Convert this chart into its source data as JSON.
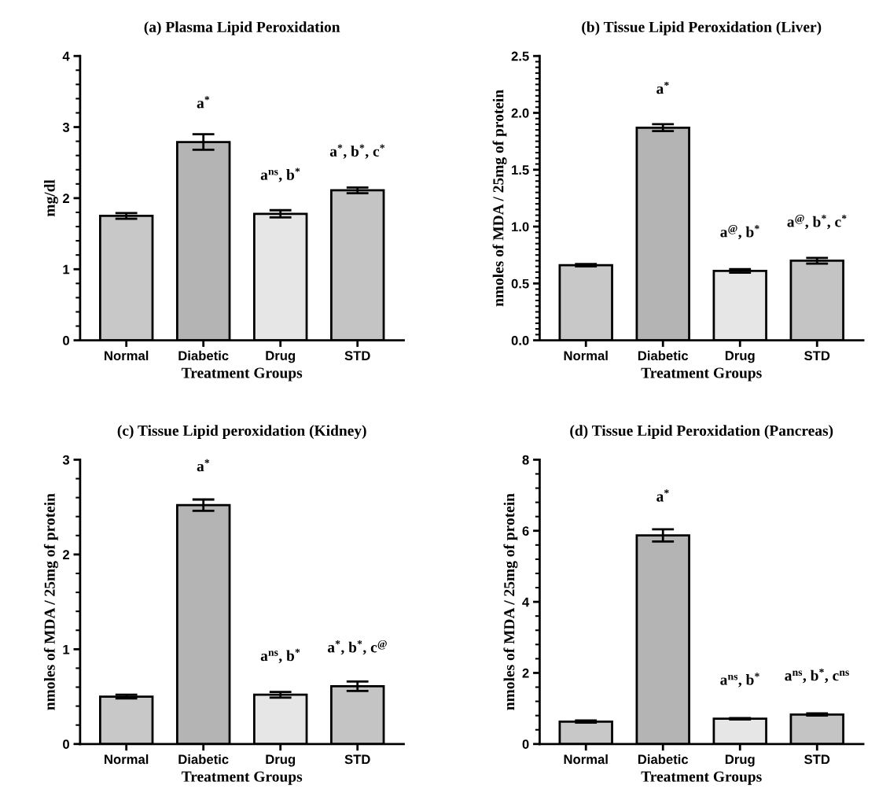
{
  "chart_data": [
    {
      "type": "bar",
      "title": "(a) Plasma Lipid Peroxidation",
      "xlabel": "Treatment Groups",
      "ylabel": "mg/dl",
      "categories": [
        "Normal",
        "Diabetic",
        "Drug",
        "STD"
      ],
      "values": [
        1.75,
        2.79,
        1.78,
        2.11
      ],
      "errors": [
        0.04,
        0.11,
        0.05,
        0.04
      ],
      "colors": [
        "#c8c8c8",
        "#b4b4b4",
        "#e6e6e6",
        "#c4c4c4"
      ],
      "ylim": [
        0,
        4
      ],
      "yticks": [
        0,
        1,
        2,
        3,
        4
      ],
      "annotations": [
        {
          "text": "a$^{*}$",
          "x": "Diabetic",
          "y": 2.79
        },
        {
          "text": "a$^{ns}$, b$^{*}$",
          "x": "Drug",
          "y": 1.78
        },
        {
          "text": "a$^{*}$, b$^{*}$, c$^{*}$",
          "x": "STD",
          "y": 2.11
        }
      ]
    },
    {
      "type": "bar",
      "title": "(b) Tissue Lipid Peroxidation (Liver)",
      "xlabel": "Treatment Groups",
      "ylabel": "nmoles of MDA / 25mg of protein",
      "categories": [
        "Normal",
        "Diabetic",
        "Drug",
        "STD"
      ],
      "values": [
        0.66,
        1.87,
        0.61,
        0.7
      ],
      "errors": [
        0.01,
        0.03,
        0.015,
        0.025
      ],
      "colors": [
        "#c8c8c8",
        "#b4b4b4",
        "#e6e6e6",
        "#c4c4c4"
      ],
      "ylim": [
        0,
        2.5
      ],
      "yticks": [
        {
          "value": 0,
          "label": "0.0"
        },
        0.5,
        {
          "value": 1,
          "label": "1.0"
        },
        1.5,
        {
          "value": 2,
          "label": "2.0"
        },
        2.5
      ],
      "annotations": [
        {
          "text": "a$^{*}$",
          "x": "Diabetic",
          "y": 1.87
        },
        {
          "text": "a$^{@}$, b$^{*}$",
          "x": "Drug",
          "y": 0.61
        },
        {
          "text": "a$^{@}$, b$^{*}$, c$^{*}$",
          "x": "STD",
          "y": 0.7
        }
      ]
    },
    {
      "type": "bar",
      "title": "(c) Tissue Lipid peroxidation (Kidney)",
      "xlabel": "Treatment Groups",
      "ylabel": "nmoles of MDA / 25mg of protein",
      "categories": [
        "Normal",
        "Diabetic",
        "Drug",
        "STD"
      ],
      "values": [
        0.5,
        2.52,
        0.52,
        0.61
      ],
      "errors": [
        0.02,
        0.06,
        0.03,
        0.05
      ],
      "colors": [
        "#c8c8c8",
        "#b4b4b4",
        "#e6e6e6",
        "#c4c4c4"
      ],
      "ylim": [
        0,
        3
      ],
      "yticks": [
        0,
        1,
        2,
        3
      ],
      "annotations": [
        {
          "text": "a$^{*}$",
          "x": "Diabetic",
          "y": 2.52
        },
        {
          "text": "a$^{ns}$, b$^{*}$",
          "x": "Drug",
          "y": 0.52
        },
        {
          "text": "a$^{*}$, b$^{*}$, c$^{@}$",
          "x": "STD",
          "y": 0.61
        }
      ]
    },
    {
      "type": "bar",
      "title": "(d) Tissue Lipid Peroxidation (Pancreas)",
      "xlabel": "Treatment Groups",
      "ylabel": "nmoles of MDA / 25mg of protein",
      "categories": [
        "Normal",
        "Diabetic",
        "Drug",
        "STD"
      ],
      "values": [
        0.63,
        5.87,
        0.71,
        0.83
      ],
      "errors": [
        0.03,
        0.17,
        0.02,
        0.03
      ],
      "colors": [
        "#c8c8c8",
        "#b4b4b4",
        "#e6e6e6",
        "#c4c4c4"
      ],
      "ylim": [
        0,
        8
      ],
      "yticks": [
        0,
        2,
        4,
        6,
        8
      ],
      "annotations": [
        {
          "text": "a$^{*}$",
          "x": "Diabetic",
          "y": 5.87
        },
        {
          "text": "a$^{ns}$, b$^{*}$",
          "x": "Drug",
          "y": 0.71
        },
        {
          "text": "a$^{ns}$, b$^{*}$, c$^{ns}$",
          "x": "STD",
          "y": 0.83
        }
      ]
    }
  ]
}
